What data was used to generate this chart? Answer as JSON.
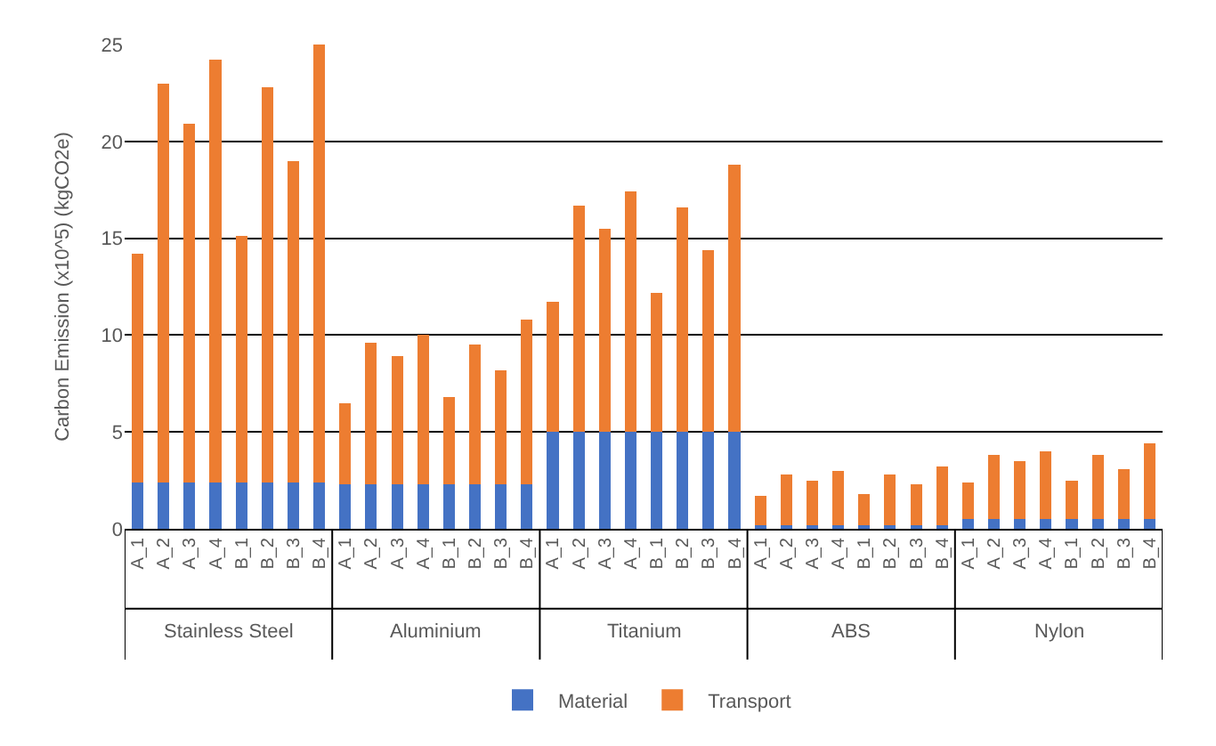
{
  "chart_data": {
    "type": "bar",
    "stacked": true,
    "ylabel": "Carbon Emission (x10^5) (kgCO2e)",
    "categories": [
      "A_1",
      "A_2",
      "A_3",
      "A_4",
      "B_1",
      "B_2",
      "B_3",
      "B_4",
      "A_1",
      "A_2",
      "A_3",
      "A_4",
      "B_1",
      "B_2",
      "B_3",
      "B_4",
      "A_1",
      "A_2",
      "A_3",
      "A_4",
      "B_1",
      "B_2",
      "B_3",
      "B_4",
      "A_1",
      "A_2",
      "A_3",
      "A_4",
      "B_1",
      "B_2",
      "B_3",
      "B_4",
      "A_1",
      "A_2",
      "A_3",
      "A_4",
      "B_1",
      "B_2",
      "B_3",
      "B_4"
    ],
    "annotations": [
      "Stainless Steel",
      "Aluminium",
      "Titanium",
      "ABS",
      "Nylon"
    ],
    "series": [
      {
        "name": "Material",
        "color": "#4472c4",
        "values": [
          2.4,
          2.4,
          2.4,
          2.4,
          2.4,
          2.4,
          2.4,
          2.4,
          2.3,
          2.3,
          2.3,
          2.3,
          2.3,
          2.3,
          2.3,
          2.3,
          5.0,
          5.0,
          5.0,
          5.0,
          5.0,
          5.0,
          5.0,
          5.0,
          0.2,
          0.2,
          0.2,
          0.2,
          0.2,
          0.2,
          0.2,
          0.2,
          0.5,
          0.5,
          0.5,
          0.5,
          0.5,
          0.5,
          0.5,
          0.5
        ]
      },
      {
        "name": "Transport",
        "color": "#ed7d31",
        "values": [
          11.8,
          20.6,
          18.5,
          21.8,
          12.7,
          20.4,
          16.6,
          22.6,
          4.2,
          7.3,
          6.6,
          7.7,
          4.5,
          7.2,
          5.9,
          8.5,
          6.7,
          11.7,
          10.5,
          12.4,
          7.2,
          11.6,
          9.4,
          13.8,
          1.5,
          2.6,
          2.3,
          2.8,
          1.6,
          2.6,
          2.1,
          3.0,
          1.9,
          3.3,
          3.0,
          3.5,
          2.0,
          3.3,
          2.6,
          3.9
        ]
      }
    ],
    "ylim": [
      0,
      25
    ],
    "yticks": [
      0,
      5,
      10,
      15,
      20,
      25
    ],
    "grid": "y",
    "legend": "bottom"
  }
}
